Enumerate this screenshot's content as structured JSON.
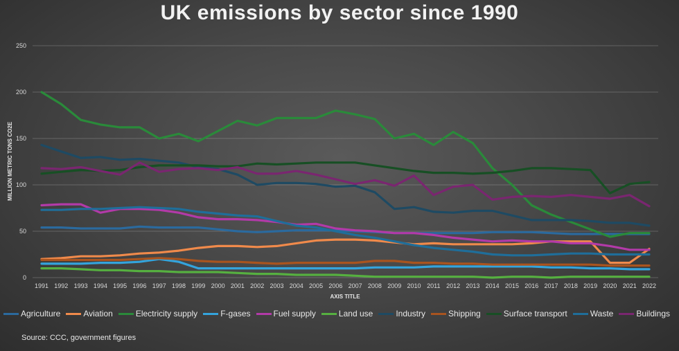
{
  "chart_data": {
    "type": "line",
    "title": "UK emissions by sector since 1990",
    "xlabel": "AXIS TITLE",
    "ylabel": "MILLION METRIC TONS CO2E",
    "ylim": [
      0,
      250
    ],
    "yticks": [
      0,
      50,
      100,
      150,
      200,
      250
    ],
    "grid": true,
    "legend_position": "bottom",
    "x": [
      "1991",
      "1992",
      "1993",
      "1994",
      "1995",
      "1996",
      "1997",
      "1998",
      "1999",
      "2000",
      "2001",
      "2002",
      "2003",
      "2004",
      "2005",
      "2006",
      "2007",
      "2008",
      "2009",
      "2010",
      "2011",
      "2012",
      "2013",
      "2014",
      "2015",
      "2016",
      "2017",
      "2018",
      "2019",
      "2020",
      "2021",
      "2022"
    ],
    "series": [
      {
        "name": "Agriculture",
        "color": "#2B6A9E",
        "values": [
          54,
          54,
          53,
          53,
          53,
          55,
          54,
          54,
          54,
          52,
          50,
          49,
          50,
          51,
          51,
          51,
          50,
          49,
          48,
          48,
          48,
          48,
          48,
          49,
          49,
          49,
          48,
          47,
          47,
          47,
          47,
          47
        ]
      },
      {
        "name": "Aviation",
        "color": "#F08A4B",
        "values": [
          20,
          21,
          23,
          23,
          24,
          26,
          27,
          29,
          32,
          34,
          34,
          33,
          34,
          37,
          40,
          41,
          41,
          40,
          38,
          36,
          37,
          36,
          36,
          36,
          36,
          37,
          39,
          39,
          39,
          16,
          16,
          31
        ]
      },
      {
        "name": "Electricity supply",
        "color": "#2A8A3A",
        "values": [
          200,
          187,
          170,
          165,
          162,
          162,
          150,
          155,
          147,
          158,
          169,
          164,
          172,
          172,
          172,
          180,
          176,
          171,
          150,
          155,
          143,
          157,
          145,
          118,
          100,
          78,
          68,
          60,
          52,
          44,
          48,
          48
        ]
      },
      {
        "name": "F-gases",
        "color": "#34A4DC",
        "values": [
          15,
          15,
          15,
          16,
          16,
          17,
          20,
          17,
          10,
          10,
          10,
          10,
          10,
          10,
          10,
          10,
          10,
          11,
          11,
          11,
          12,
          12,
          12,
          12,
          12,
          12,
          11,
          11,
          10,
          10,
          9,
          9
        ]
      },
      {
        "name": "Fuel supply",
        "color": "#B23AA8",
        "values": [
          78,
          79,
          79,
          70,
          74,
          74,
          73,
          70,
          65,
          63,
          63,
          62,
          60,
          57,
          58,
          53,
          51,
          50,
          48,
          48,
          46,
          43,
          41,
          39,
          40,
          39,
          39,
          37,
          37,
          34,
          30,
          30
        ]
      },
      {
        "name": "Land use",
        "color": "#56B040",
        "values": [
          10,
          10,
          9,
          8,
          8,
          7,
          7,
          6,
          6,
          6,
          5,
          4,
          4,
          3,
          3,
          3,
          2,
          1,
          1,
          1,
          1,
          1,
          1,
          0,
          1,
          1,
          0,
          1,
          1,
          1,
          1,
          1
        ]
      },
      {
        "name": "Industry",
        "color": "#1E4A63",
        "values": [
          143,
          136,
          129,
          130,
          127,
          128,
          126,
          124,
          119,
          117,
          111,
          100,
          102,
          102,
          101,
          98,
          99,
          92,
          74,
          76,
          71,
          70,
          72,
          72,
          67,
          62,
          62,
          62,
          61,
          59,
          59,
          56
        ]
      },
      {
        "name": "Shipping",
        "color": "#A9541F",
        "values": [
          19,
          19,
          19,
          19,
          19,
          20,
          21,
          20,
          18,
          17,
          17,
          16,
          15,
          16,
          16,
          16,
          16,
          18,
          18,
          16,
          16,
          15,
          15,
          14,
          14,
          14,
          14,
          14,
          14,
          13,
          13,
          13
        ]
      },
      {
        "name": "Surface transport",
        "color": "#174F24",
        "values": [
          112,
          114,
          116,
          115,
          116,
          119,
          121,
          121,
          121,
          120,
          120,
          123,
          122,
          123,
          124,
          124,
          124,
          121,
          118,
          115,
          113,
          113,
          112,
          113,
          115,
          118,
          118,
          117,
          116,
          91,
          101,
          103
        ]
      },
      {
        "name": "Waste",
        "color": "#1F6E9A",
        "values": [
          73,
          73,
          74,
          74,
          75,
          76,
          75,
          74,
          71,
          69,
          67,
          66,
          61,
          56,
          54,
          50,
          46,
          43,
          39,
          35,
          32,
          30,
          28,
          25,
          24,
          24,
          25,
          26,
          26,
          25,
          25,
          25
        ]
      },
      {
        "name": "Buildings",
        "color": "#7A2670",
        "values": [
          118,
          117,
          119,
          115,
          111,
          124,
          114,
          117,
          118,
          116,
          119,
          112,
          112,
          115,
          111,
          106,
          101,
          105,
          99,
          110,
          89,
          98,
          100,
          84,
          87,
          88,
          87,
          89,
          87,
          85,
          89,
          77
        ]
      }
    ]
  },
  "source": "Source: CCC, government figures"
}
